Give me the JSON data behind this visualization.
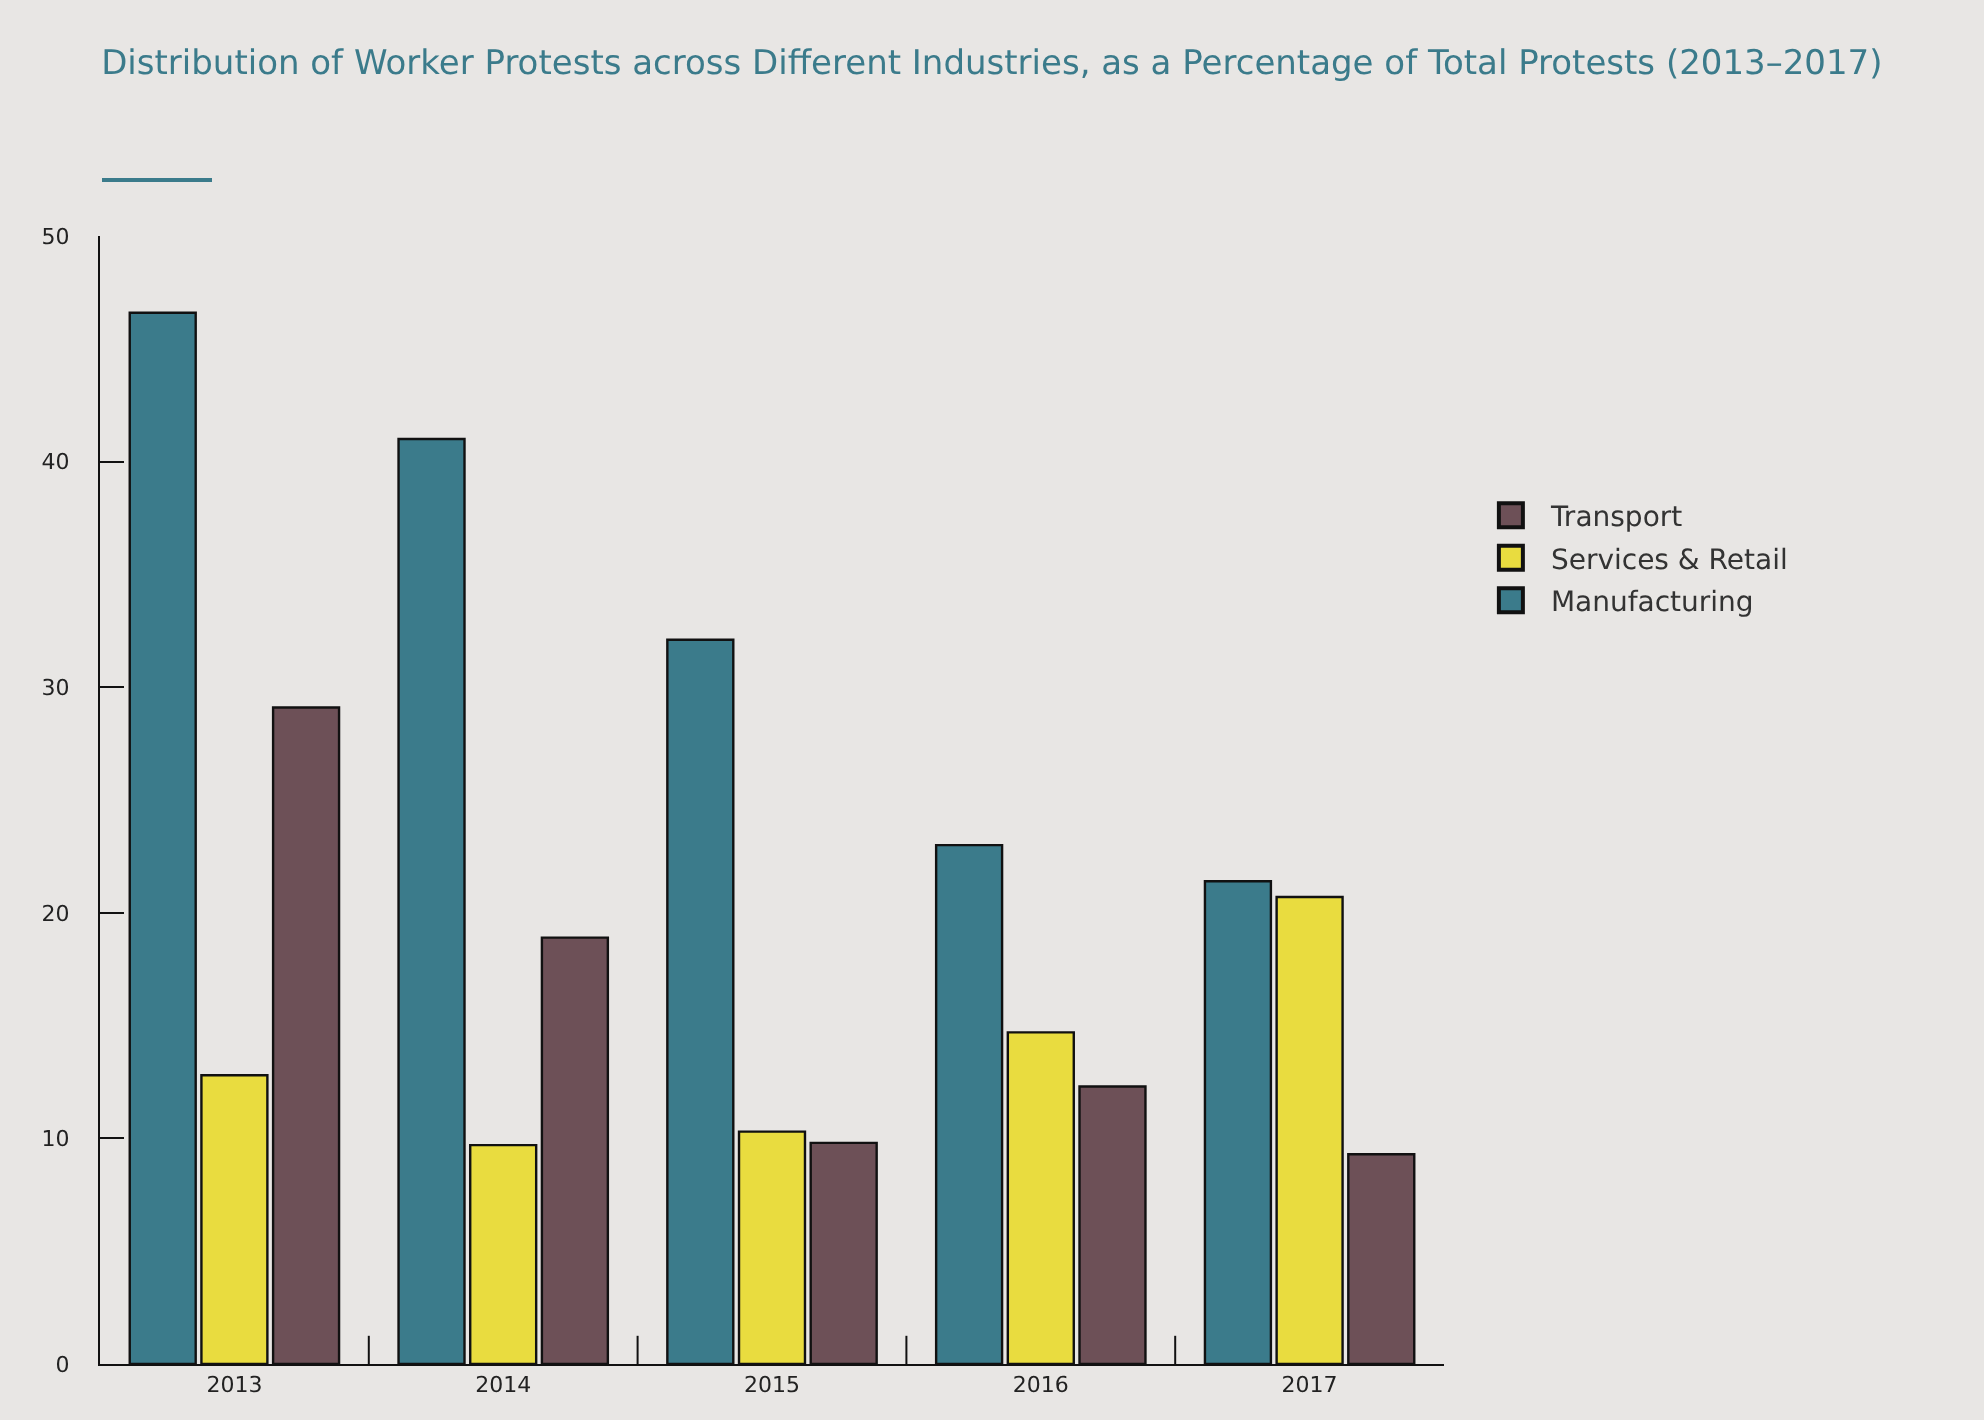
{
  "chart_data": {
    "type": "bar",
    "title": "Distribution of Worker Protests across Different Industries, as a Percentage of Total Protests (2013–2017)",
    "categories": [
      "2013",
      "2014",
      "2015",
      "2016",
      "2017"
    ],
    "series": [
      {
        "name": "Manufacturing",
        "color": "#3b7b8b",
        "values": [
          46.6,
          41.0,
          32.1,
          23.0,
          21.4
        ]
      },
      {
        "name": "Services & Retail",
        "color": "#e9dc3f",
        "values": [
          12.8,
          9.7,
          10.3,
          14.7,
          20.7
        ]
      },
      {
        "name": "Transport",
        "color": "#6d5057",
        "values": [
          29.1,
          18.9,
          9.8,
          12.3,
          9.3
        ]
      }
    ],
    "ylim": [
      0,
      50
    ],
    "yticks": [
      0,
      10,
      20,
      30,
      40,
      50
    ],
    "grid": false,
    "legend": "right"
  }
}
